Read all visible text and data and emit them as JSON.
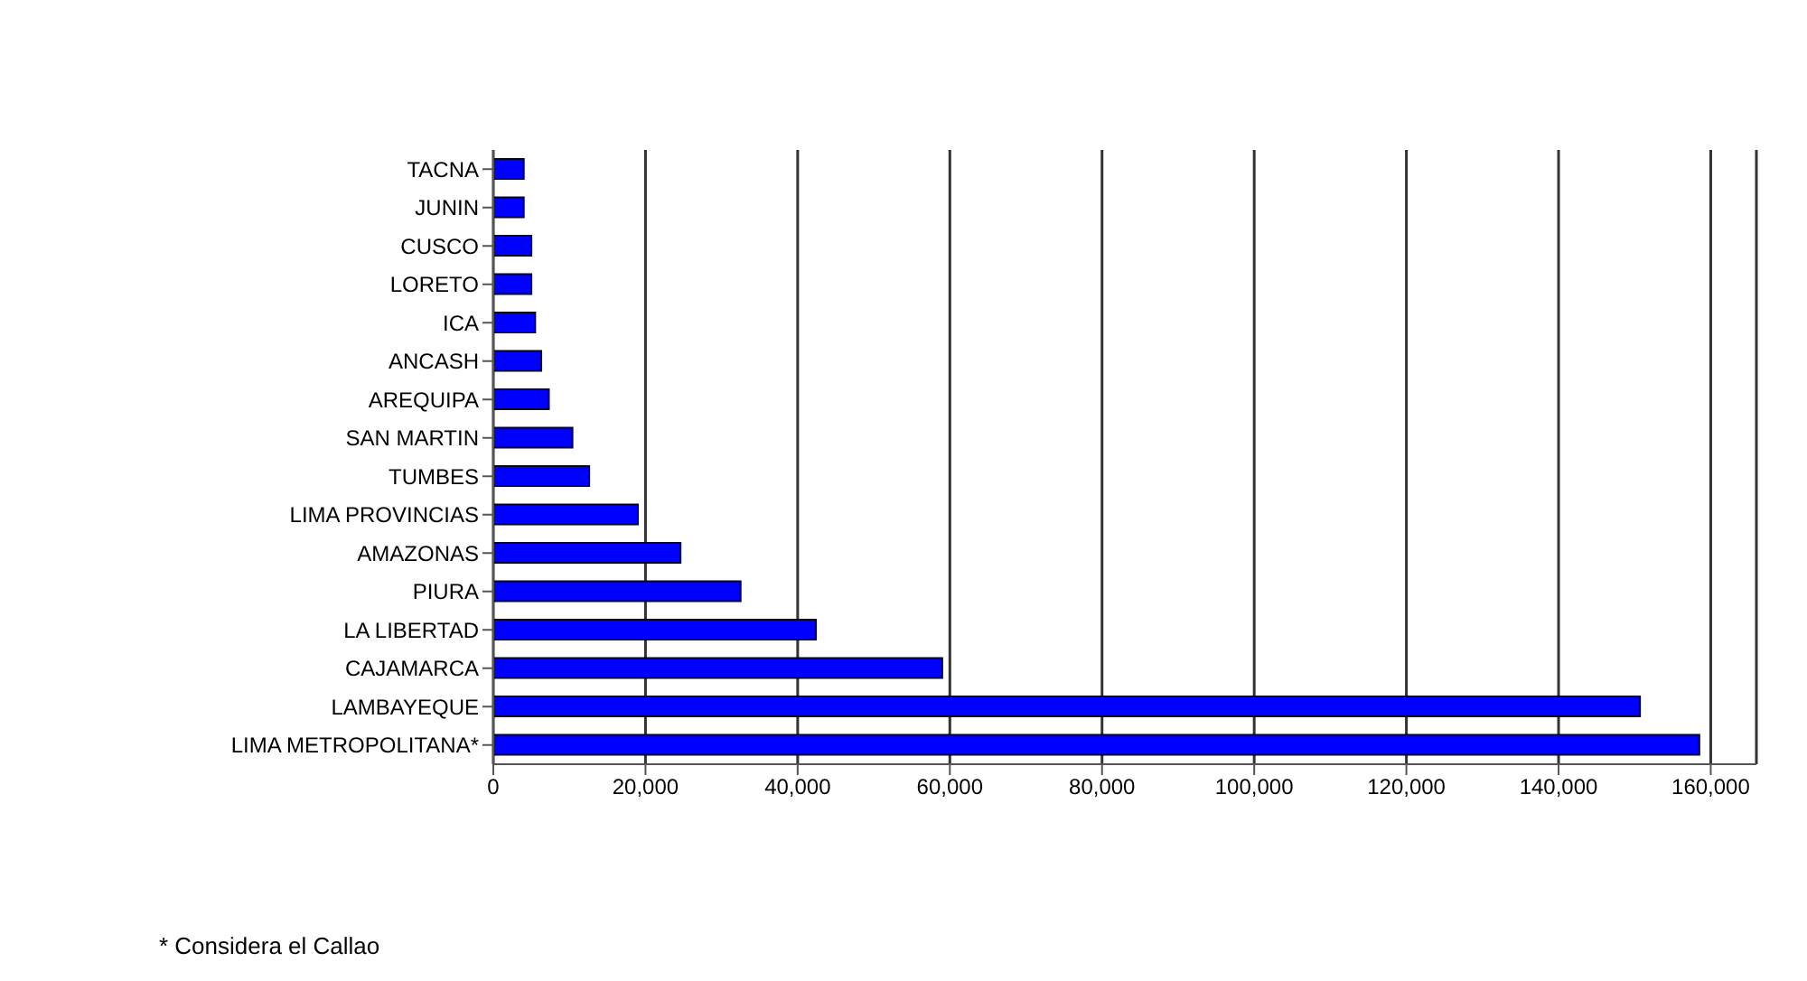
{
  "chart_data": {
    "type": "bar",
    "orientation": "horizontal",
    "categories": [
      "TACNA",
      "JUNIN",
      "CUSCO",
      "LORETO",
      "ICA",
      "ANCASH",
      "AREQUIPA",
      "SAN MARTIN",
      "TUMBES",
      "LIMA PROVINCIAS",
      "AMAZONAS",
      "PIURA",
      "LA LIBERTAD",
      "CAJAMARCA",
      "LAMBAYEQUE",
      "LIMA METROPOLITANA*"
    ],
    "values": [
      4000,
      4000,
      5000,
      5000,
      5500,
      6300,
      7300,
      10400,
      12600,
      19000,
      24600,
      32500,
      42400,
      59000,
      150700,
      158500
    ],
    "color": "#0000ff",
    "xlim": [
      0,
      166000
    ],
    "xticks": [
      {
        "value": 0,
        "label": "0"
      },
      {
        "value": 20000,
        "label": "20,000"
      },
      {
        "value": 40000,
        "label": "40,000"
      },
      {
        "value": 60000,
        "label": "60,000"
      },
      {
        "value": 80000,
        "label": "80,000"
      },
      {
        "value": 100000,
        "label": "100,000"
      },
      {
        "value": 120000,
        "label": "120,000"
      },
      {
        "value": 140000,
        "label": "140,000"
      },
      {
        "value": 160000,
        "label": "160,000"
      }
    ],
    "grid": "x",
    "annotations": [
      "* Considera el Callao"
    ]
  }
}
